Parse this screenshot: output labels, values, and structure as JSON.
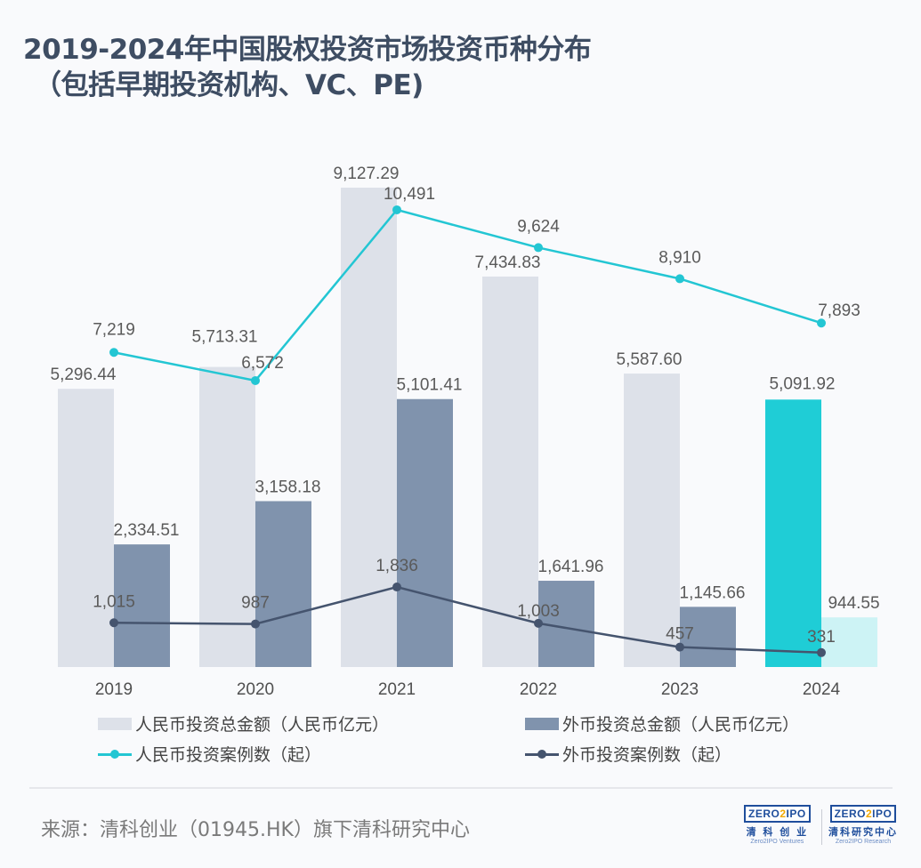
{
  "title": {
    "line1": "2019-2024年中国股权投资市场投资币种分布",
    "line2": "（包括早期投资机构、VC、PE)"
  },
  "chart_data": {
    "type": "bar",
    "title": "2019-2024年中国股权投资市场投资币种分布（包括早期投资机构、VC、PE)",
    "categories": [
      "2019",
      "2020",
      "2021",
      "2022",
      "2023",
      "2024"
    ],
    "series": [
      {
        "name": "人民币投资总金额（人民币亿元）",
        "kind": "bar",
        "color": "#dde1e9",
        "highlight_last_color": "#1fcdd6",
        "values": [
          5296.44,
          5713.31,
          9127.29,
          7434.83,
          5587.6,
          5091.92
        ],
        "labels": [
          "5,296.44",
          "5,713.31",
          "9,127.29",
          "7,434.83",
          "5,587.60",
          "5,091.92"
        ]
      },
      {
        "name": "外币投资总金额（人民币亿元）",
        "kind": "bar",
        "color": "#8093ad",
        "highlight_last_color": "#cdf3f5",
        "values": [
          2334.51,
          3158.18,
          5101.41,
          1641.96,
          1145.66,
          944.55
        ],
        "labels": [
          "2,334.51",
          "3,158.18",
          "5,101.41",
          "1,641.96",
          "1,145.66",
          "944.55"
        ]
      },
      {
        "name": "人民币投资案例数（起）",
        "kind": "line",
        "color": "#23c6d3",
        "values": [
          7219,
          6572,
          10491,
          9624,
          8910,
          7893
        ],
        "labels": [
          "7,219",
          "6,572",
          "10,491",
          "9,624",
          "8,910",
          "7,893"
        ]
      },
      {
        "name": "外币投资案例数（起）",
        "kind": "line",
        "color": "#45546e",
        "values": [
          1015,
          987,
          1836,
          1003,
          457,
          331
        ],
        "labels": [
          "1,015",
          "987",
          "1,836",
          "1,003",
          "457",
          "331"
        ]
      }
    ],
    "xlabel": "",
    "ylabel": "",
    "ylim_bars": [
      0,
      9127.29
    ],
    "ylim_lines": [
      0,
      10491
    ],
    "grid": false,
    "legend_placement": "bottom"
  },
  "legend": {
    "items": [
      {
        "label": "人民币投资总金额（人民币亿元）",
        "color": "#dde1e9"
      },
      {
        "label": "外币投资总金额（人民币亿元）",
        "color": "#8093ad"
      },
      {
        "label": "人民币投资案例数（起）",
        "color": "#23c6d3"
      },
      {
        "label": "外币投资案例数（起）",
        "color": "#45546e"
      }
    ]
  },
  "footer": {
    "source": "来源：清科创业（01945.HK）旗下清科研究中心",
    "logo1": {
      "badge_left": "ZERO",
      "badge_mid": "2",
      "badge_right": "IPO",
      "cn": "清 科 创 业",
      "en": "Zero2IPO Ventures"
    },
    "logo2": {
      "badge_left": "ZERO",
      "badge_mid": "2",
      "badge_right": "IPO",
      "cn": "清科研究中心",
      "en": "Zero2IPO Research"
    }
  }
}
